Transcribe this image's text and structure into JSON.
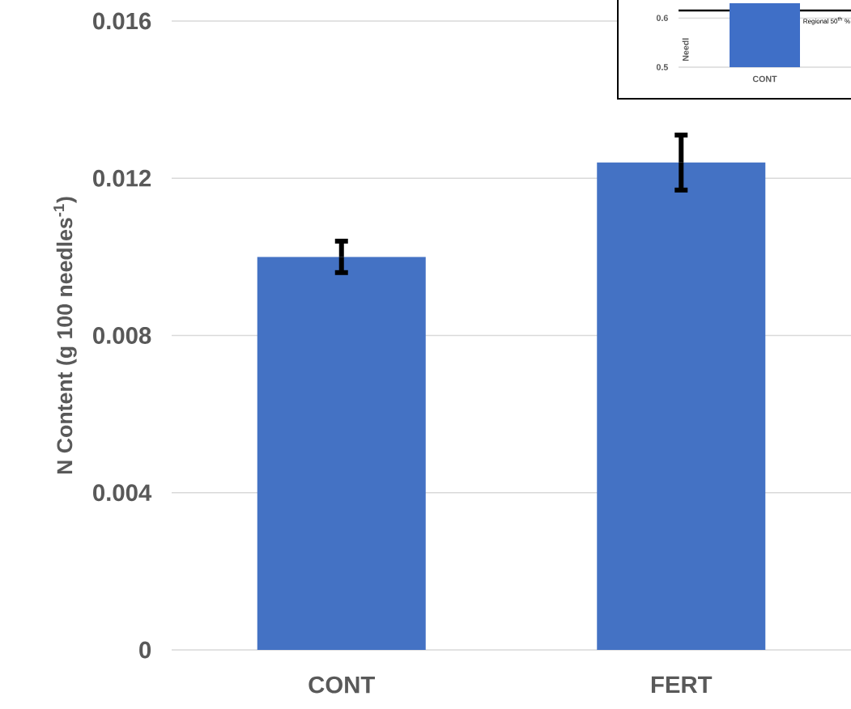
{
  "chart_data": [
    {
      "type": "bar",
      "ylabel": "N Content (g 100 needles$^{-1}$)",
      "categories": [
        "CONT",
        "FERT"
      ],
      "values": [
        0.01,
        0.0124
      ],
      "errors": [
        0.0004,
        0.0007
      ],
      "color": "#4472c4",
      "ylim": [
        0,
        0.016
      ],
      "yticks": [
        0,
        0.004,
        0.008,
        0.012,
        0.016
      ],
      "grid": "y"
    },
    {
      "type": "bar",
      "ylabel": "Needl",
      "categories": [
        "CONT"
      ],
      "values": [
        0.63
      ],
      "color": "#3f6fc7",
      "ylim": [
        0.5,
        0.63
      ],
      "yticks": [
        0.5,
        0.6
      ],
      "grid": "y",
      "ref_lines": [
        {
          "axis": "y",
          "value": 0.615,
          "label": "Regional 50$^{th}$ %",
          "color": "#000000"
        }
      ]
    }
  ]
}
